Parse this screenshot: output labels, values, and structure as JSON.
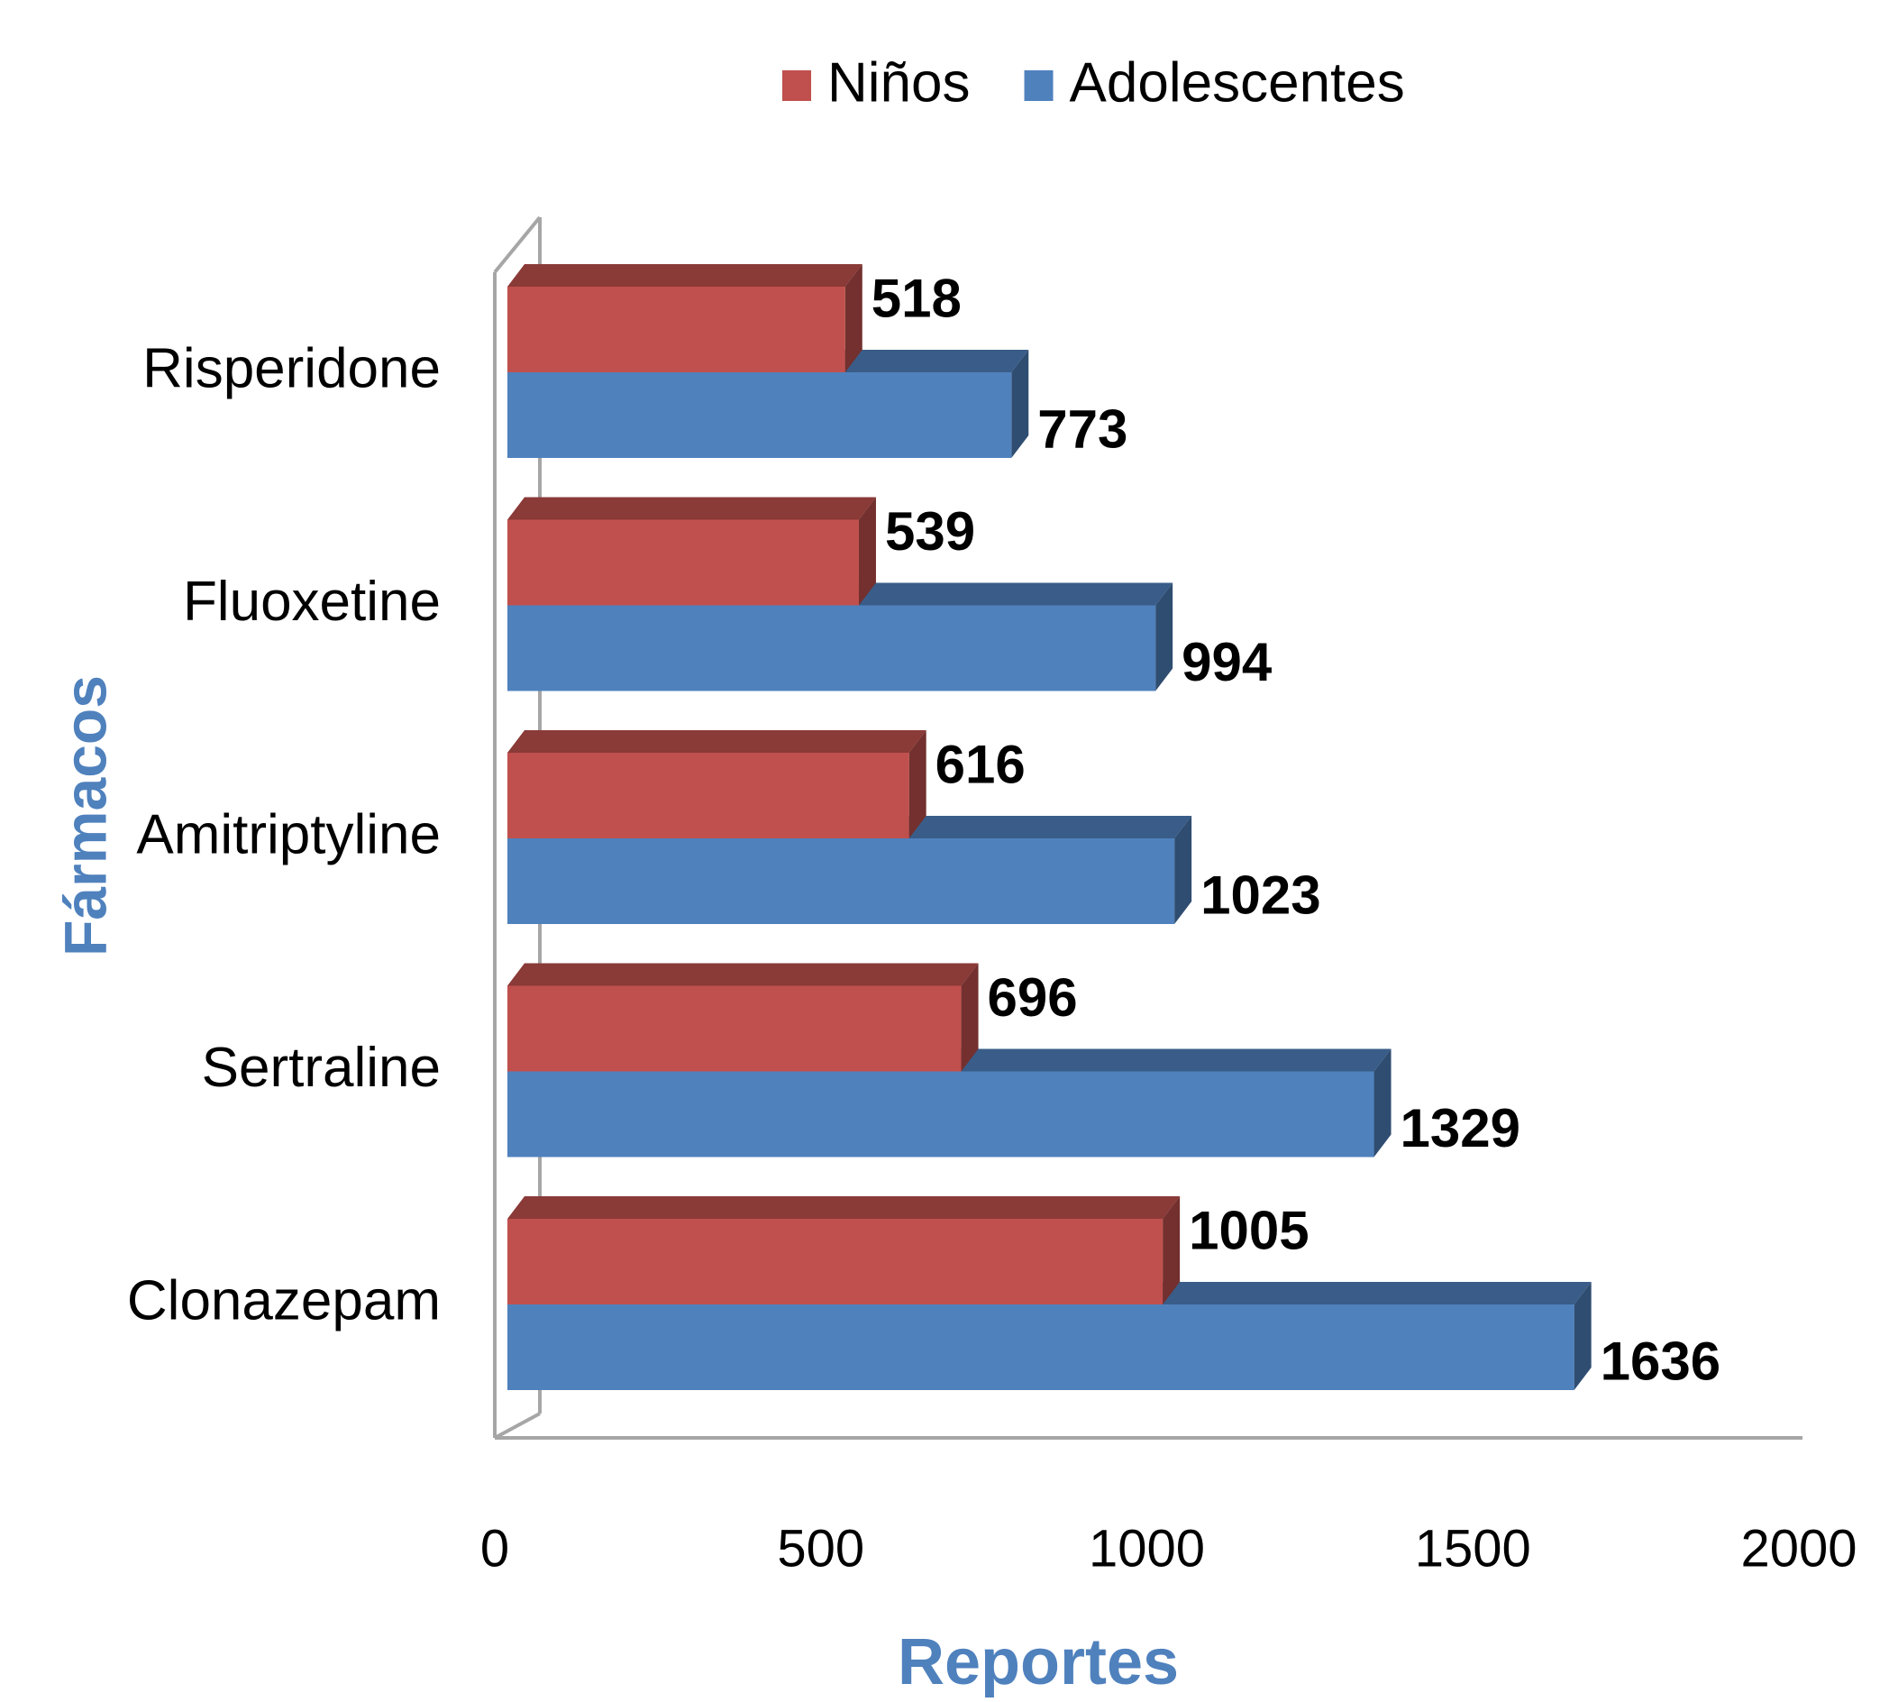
{
  "chart_data": {
    "type": "bar3d_horizontal",
    "categories": [
      "Risperidone",
      "Fluoxetine",
      "Amitriptyline",
      "Sertraline",
      "Clonazepam"
    ],
    "series": [
      {
        "name": "Niños",
        "color": "#c0504d",
        "values": [
          518,
          539,
          616,
          696,
          1005
        ]
      },
      {
        "name": "Adolescentes",
        "color": "#4f81bd",
        "values": [
          773,
          994,
          1023,
          1329,
          1636
        ]
      }
    ],
    "xlim": [
      0,
      2000
    ],
    "xticks": [
      0,
      500,
      1000,
      1500,
      2000
    ],
    "xlabel": "Reportes",
    "ylabel": "Fármacos",
    "legend": "top"
  }
}
